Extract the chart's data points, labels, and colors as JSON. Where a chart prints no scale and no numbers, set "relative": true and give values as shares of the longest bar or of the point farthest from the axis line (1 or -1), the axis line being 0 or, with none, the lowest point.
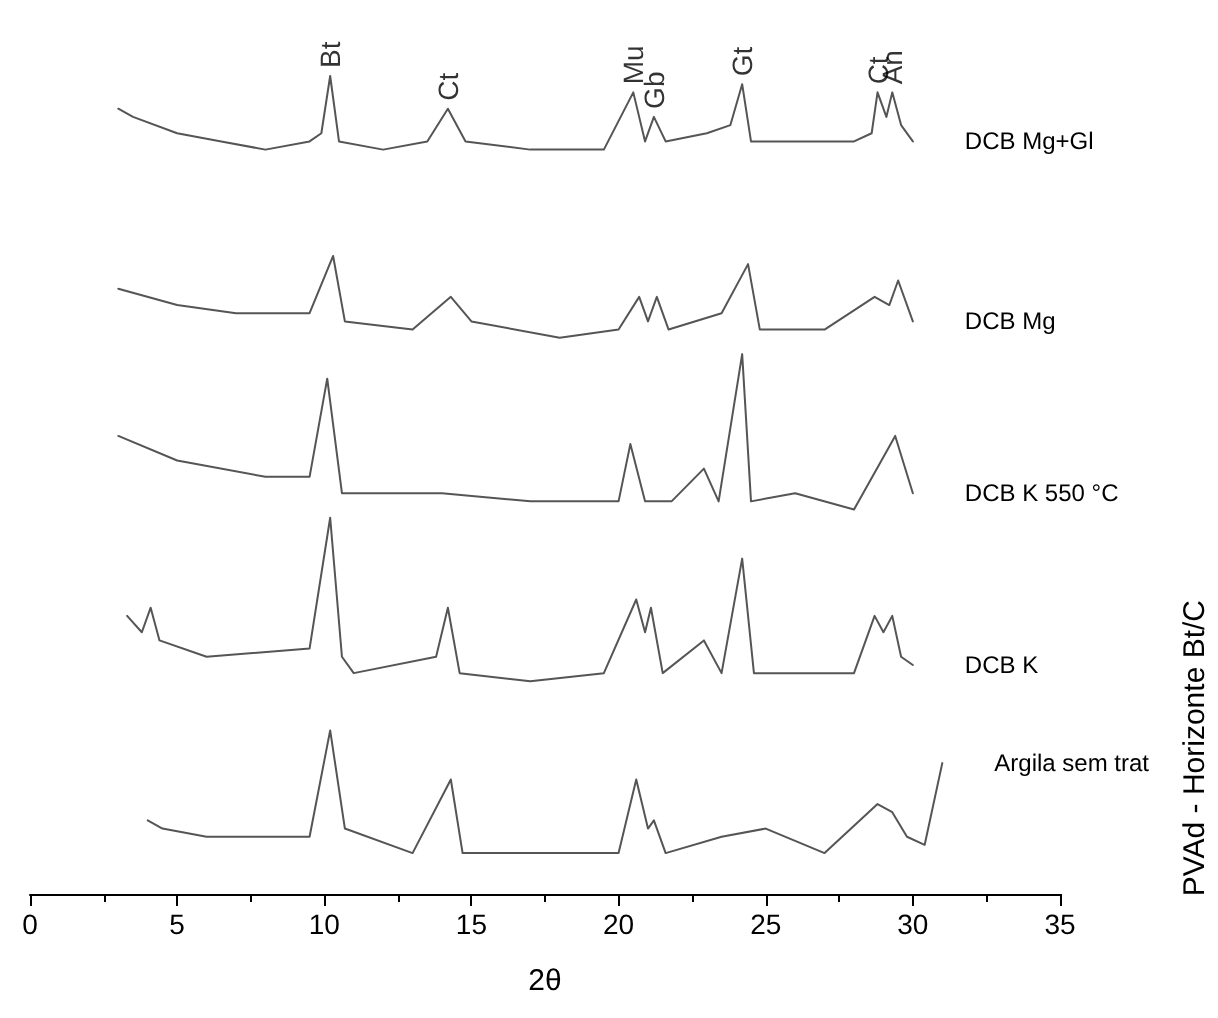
{
  "chart_data": {
    "type": "line",
    "relative": true,
    "xlabel": "2θ",
    "y2label": "PVAd - Horizonte Bt/C",
    "xlim": [
      0,
      35
    ],
    "xticks": [
      0,
      5,
      10,
      15,
      20,
      25,
      30,
      35
    ],
    "grid": false,
    "legend": false,
    "marker": "none",
    "line_style": "solid",
    "series": [
      {
        "name": "DCB Mg+Gl",
        "color": "#555555",
        "x": [
          3.0,
          3.5,
          5,
          6.5,
          8,
          9.5,
          9.9,
          10.2,
          10.5,
          12,
          13.5,
          14.2,
          14.8,
          17,
          19.5,
          20.5,
          20.9,
          21.2,
          21.6,
          23,
          23.8,
          24.2,
          24.5,
          26,
          28,
          28.6,
          28.8,
          29.1,
          29.3,
          29.6,
          30
        ],
        "values": [
          0.96,
          0.95,
          0.93,
          0.92,
          0.91,
          0.92,
          0.93,
          1.0,
          0.92,
          0.91,
          0.92,
          0.96,
          0.92,
          0.91,
          0.91,
          0.98,
          0.92,
          0.95,
          0.92,
          0.93,
          0.94,
          0.99,
          0.92,
          0.92,
          0.92,
          0.93,
          0.98,
          0.95,
          0.98,
          0.94,
          0.92
        ]
      },
      {
        "name": "DCB Mg",
        "color": "#555555",
        "x": [
          3.0,
          5,
          7,
          9.5,
          10.3,
          10.7,
          13,
          14.3,
          15,
          18,
          20,
          20.7,
          21,
          21.3,
          21.7,
          23.5,
          24.4,
          24.8,
          27,
          28.7,
          29.2,
          29.5,
          30
        ],
        "values": [
          0.74,
          0.72,
          0.71,
          0.71,
          0.78,
          0.7,
          0.69,
          0.73,
          0.7,
          0.68,
          0.69,
          0.73,
          0.7,
          0.73,
          0.69,
          0.71,
          0.77,
          0.69,
          0.69,
          0.73,
          0.72,
          0.75,
          0.7
        ]
      },
      {
        "name": "DCB K 550 °C",
        "color": "#555555",
        "x": [
          3.0,
          5,
          8,
          9.5,
          10.1,
          10.6,
          14,
          17,
          20,
          20.4,
          20.9,
          21.8,
          22.9,
          23.4,
          24.2,
          24.5,
          26,
          28,
          29.4,
          30
        ],
        "values": [
          0.56,
          0.53,
          0.51,
          0.51,
          0.63,
          0.49,
          0.49,
          0.48,
          0.48,
          0.55,
          0.48,
          0.48,
          0.52,
          0.48,
          0.66,
          0.48,
          0.49,
          0.47,
          0.56,
          0.49
        ]
      },
      {
        "name": "DCB K",
        "color": "#555555",
        "x": [
          3.3,
          3.8,
          4.1,
          4.4,
          6,
          9.5,
          10.2,
          10.6,
          11,
          13.8,
          14.2,
          14.6,
          17,
          19.5,
          20.6,
          20.9,
          21.1,
          21.5,
          22.9,
          23.5,
          24.2,
          24.6,
          28,
          28.7,
          29,
          29.3,
          29.6,
          30
        ],
        "values": [
          0.34,
          0.32,
          0.35,
          0.31,
          0.29,
          0.3,
          0.46,
          0.29,
          0.27,
          0.29,
          0.35,
          0.27,
          0.26,
          0.27,
          0.36,
          0.32,
          0.35,
          0.27,
          0.31,
          0.27,
          0.41,
          0.27,
          0.27,
          0.34,
          0.32,
          0.34,
          0.29,
          0.28
        ]
      },
      {
        "name": "Argila sem trat",
        "color": "#555555",
        "x": [
          4.0,
          4.5,
          6,
          9.5,
          10.2,
          10.7,
          13,
          14.3,
          14.7,
          18,
          20,
          20.6,
          21,
          21.2,
          21.6,
          23.5,
          25,
          27,
          28.8,
          29.3,
          29.8,
          30.4,
          31
        ],
        "values": [
          0.09,
          0.08,
          0.07,
          0.07,
          0.2,
          0.08,
          0.05,
          0.14,
          0.05,
          0.05,
          0.05,
          0.14,
          0.08,
          0.09,
          0.05,
          0.07,
          0.08,
          0.05,
          0.11,
          0.1,
          0.07,
          0.06,
          0.16
        ]
      }
    ],
    "annotations": [
      {
        "text": "Bt",
        "x": 10.2,
        "y": 1.0
      },
      {
        "text": "Ct",
        "x": 14.2,
        "y": 0.96
      },
      {
        "text": "Mu",
        "x": 20.5,
        "y": 0.98
      },
      {
        "text": "Gb",
        "x": 21.2,
        "y": 0.95
      },
      {
        "text": "Gt",
        "x": 24.2,
        "y": 0.99
      },
      {
        "text": "Ct",
        "x": 28.8,
        "y": 0.98
      },
      {
        "text": "An",
        "x": 29.3,
        "y": 0.98
      }
    ]
  }
}
